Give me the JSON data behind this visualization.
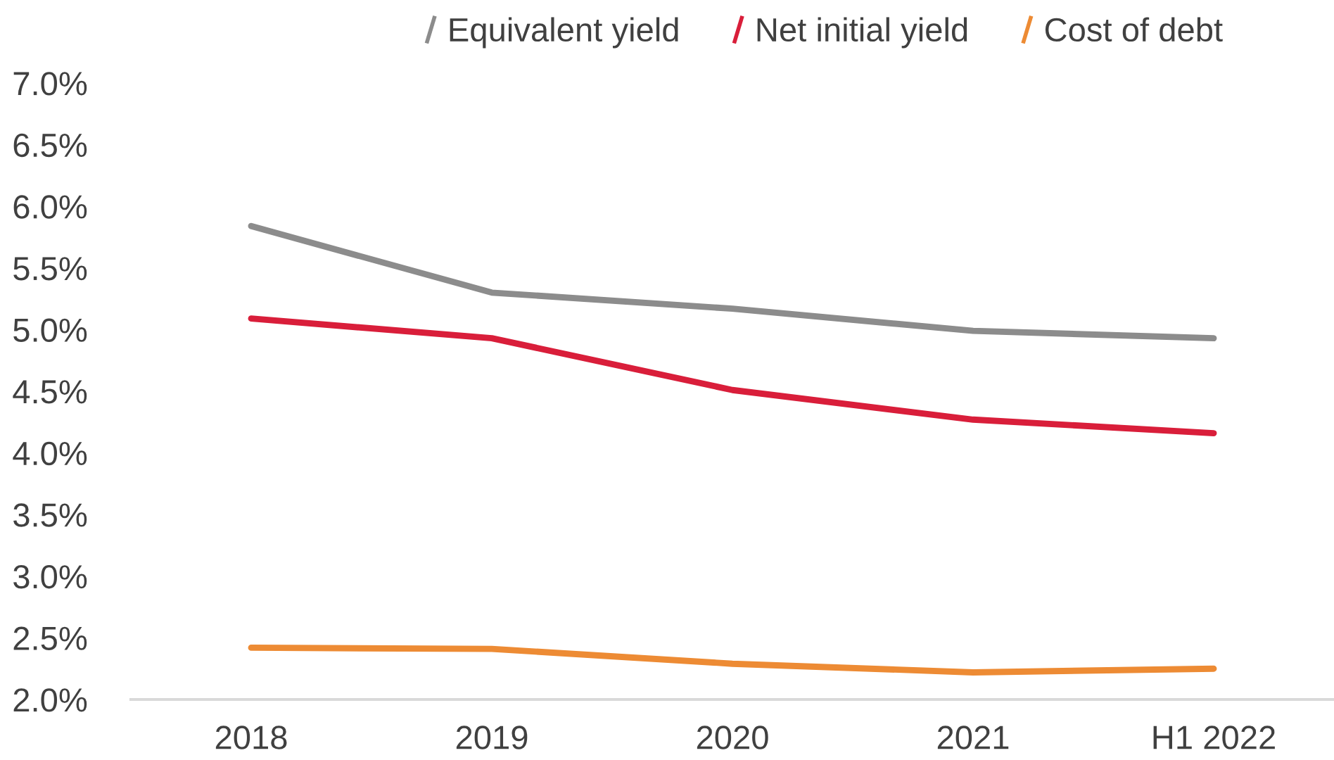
{
  "chart_data": {
    "type": "line",
    "categories": [
      "2018",
      "2019",
      "2020",
      "2021",
      "H1 2022"
    ],
    "series": [
      {
        "name": "Equivalent yield",
        "color": "#8c8c8c",
        "values": [
          5.84,
          5.3,
          5.17,
          4.99,
          4.93
        ]
      },
      {
        "name": "Net initial yield",
        "color": "#d91e3a",
        "values": [
          5.09,
          4.93,
          4.51,
          4.27,
          4.16
        ]
      },
      {
        "name": "Cost of debt",
        "color": "#ed8b34",
        "values": [
          2.42,
          2.41,
          2.29,
          2.22,
          2.25
        ]
      }
    ],
    "ylim": [
      2.0,
      7.0
    ],
    "yticks": [
      {
        "value": 2.0,
        "label": "2.0%"
      },
      {
        "value": 2.5,
        "label": "2.5%"
      },
      {
        "value": 3.0,
        "label": "3.0%"
      },
      {
        "value": 3.5,
        "label": "3.5%"
      },
      {
        "value": 4.0,
        "label": "4.0%"
      },
      {
        "value": 4.5,
        "label": "4.5%"
      },
      {
        "value": 5.0,
        "label": "5.0%"
      },
      {
        "value": 5.5,
        "label": "5.5%"
      },
      {
        "value": 6.0,
        "label": "6.0%"
      },
      {
        "value": 6.5,
        "label": "6.5%"
      },
      {
        "value": 7.0,
        "label": "7.0%"
      }
    ],
    "legend": "top",
    "line_style": "solid",
    "marker": "none"
  }
}
